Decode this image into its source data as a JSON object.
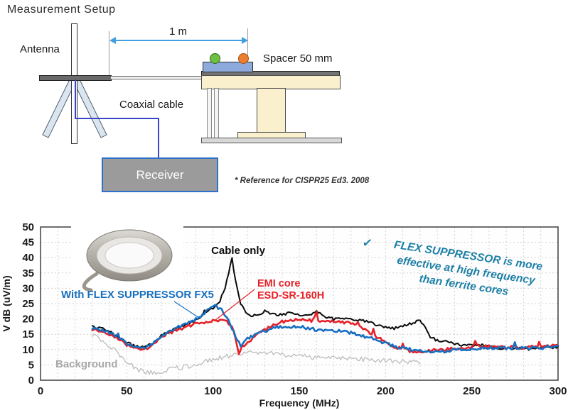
{
  "setup": {
    "title": "Measurement Setup",
    "antenna_label": "Antenna",
    "distance_label": "1 m",
    "spacer_label": "Spacer 50 mm",
    "cable_label": "Coaxial cable",
    "receiver_label": "Receiver",
    "reference_note": "* Reference for CISPR25 Ed3. 2008",
    "colors": {
      "dimension_arrow": "#41a0e0",
      "coax_cable": "#3a45c8",
      "receiver_fill": "#9b9b9b",
      "receiver_border": "#2b70c9",
      "table_top": "#faf0cd",
      "spacer_block": "#8ea9db",
      "connector_green": "#6fbf44",
      "connector_orange": "#ed7d31"
    }
  },
  "chart": {
    "labels": {
      "cable_only": "Cable only",
      "emi_core_line1": "EMI core",
      "emi_core_line2": "ESD-SR-160H",
      "flex": "With FLEX SUPPRESSOR FX5",
      "background": "Background"
    },
    "annotation": {
      "check": "✓",
      "lines": [
        "FLEX SUPPRESSOR is more",
        "effective at high frequency",
        "than ferrite cores"
      ],
      "color": "#1d7fa6"
    }
  },
  "chart_data": {
    "type": "line",
    "title": "",
    "xlabel": "Frequency (MHz)",
    "ylabel": "V dB (uV/m)",
    "xlim": [
      0,
      300
    ],
    "ylim": [
      0,
      50
    ],
    "xticks": [
      0,
      50,
      100,
      150,
      200,
      250,
      300
    ],
    "yticks": [
      0,
      5,
      10,
      15,
      20,
      25,
      30,
      35,
      40,
      45,
      50
    ],
    "grid": {
      "x_step": 10,
      "y_step": 5,
      "style": "dashed"
    },
    "legend_position": "inline-annotations",
    "z_order": [
      3,
      0,
      1,
      2
    ],
    "series": [
      {
        "name": "Cable only",
        "color": "#0b0b0b",
        "width": 2,
        "noise": 0.45,
        "x": [
          30,
          35,
          40,
          45,
          50,
          55,
          60,
          65,
          70,
          75,
          80,
          85,
          90,
          95,
          100,
          104,
          107,
          109,
          111,
          113,
          116,
          119,
          122,
          125,
          130,
          135,
          140,
          145,
          150,
          155,
          160,
          165,
          170,
          175,
          180,
          185,
          190,
          195,
          200,
          205,
          210,
          215,
          220,
          223,
          226,
          230,
          235,
          240,
          245,
          250,
          255,
          260,
          265,
          270,
          275,
          280,
          285,
          290,
          295,
          300
        ],
        "y": [
          17.5,
          17,
          16,
          14,
          12.5,
          11,
          11,
          12,
          14.5,
          16,
          17,
          18,
          19.5,
          21.5,
          23.5,
          26,
          30,
          35,
          39.5,
          33,
          25,
          22,
          21.2,
          21,
          22.5,
          21.5,
          21.5,
          22,
          21.5,
          21,
          22.5,
          20.5,
          20,
          20.5,
          20,
          19.5,
          19,
          18,
          17.5,
          17,
          17.5,
          18.5,
          19.5,
          17,
          14,
          13,
          12.5,
          12,
          11.5,
          11.5,
          11.5,
          11,
          10.5,
          10.5,
          10.5,
          10.5,
          10,
          10.5,
          10.5,
          11
        ]
      },
      {
        "name": "EMI core ESD-SR-160H",
        "color": "#e62128",
        "width": 2.6,
        "noise": 0.5,
        "x": [
          30,
          35,
          40,
          45,
          50,
          55,
          60,
          65,
          70,
          75,
          80,
          85,
          90,
          95,
          100,
          105,
          108,
          111,
          113,
          115,
          117,
          120,
          125,
          130,
          135,
          140,
          145,
          150,
          155,
          159,
          160,
          161,
          165,
          170,
          175,
          180,
          185,
          190,
          195,
          200,
          205,
          210,
          215,
          220,
          225,
          230,
          235,
          240,
          245,
          250,
          252,
          255,
          260,
          265,
          270,
          275,
          280,
          285,
          290,
          295,
          300
        ],
        "y": [
          16.5,
          16,
          15,
          13.5,
          11.5,
          10.5,
          10,
          11.5,
          14,
          15.5,
          16.5,
          17.5,
          18.5,
          19,
          19.5,
          19.5,
          19,
          17.5,
          14,
          9,
          11,
          12.5,
          14.5,
          16.5,
          18,
          19,
          19.5,
          20,
          19.5,
          19.5,
          22,
          19.5,
          19.5,
          19,
          19,
          18.5,
          17.5,
          16,
          14,
          12.5,
          11,
          10,
          9.5,
          9.5,
          9.5,
          10,
          10,
          10.5,
          10.5,
          11,
          12.5,
          11,
          11,
          11,
          10.5,
          11,
          10.5,
          11,
          11,
          11,
          11.5
        ]
      },
      {
        "name": "With FLEX SUPPRESSOR FX5",
        "color": "#176fc1",
        "width": 2.6,
        "noise": 0.5,
        "x": [
          30,
          35,
          40,
          45,
          50,
          55,
          60,
          65,
          70,
          75,
          80,
          85,
          90,
          95,
          98,
          100,
          102,
          105,
          108,
          111,
          114,
          116,
          118,
          120,
          125,
          130,
          135,
          140,
          145,
          150,
          155,
          160,
          165,
          170,
          175,
          180,
          185,
          190,
          195,
          200,
          205,
          210,
          215,
          220,
          225,
          230,
          235,
          240,
          245,
          250,
          255,
          260,
          265,
          270,
          275,
          280,
          285,
          290,
          295,
          300
        ],
        "y": [
          17,
          16.5,
          15.5,
          14,
          12,
          11,
          10.5,
          12,
          14.5,
          16,
          17.5,
          18.5,
          20,
          22,
          23.5,
          24.5,
          24,
          23,
          20.5,
          17,
          13,
          11.5,
          12.5,
          13.5,
          15,
          16,
          17,
          17.5,
          17.5,
          17.5,
          17,
          16.5,
          16.5,
          16,
          16,
          15.5,
          14.5,
          14,
          13,
          12,
          11,
          10.5,
          10,
          9.5,
          9.5,
          9.5,
          9.5,
          10,
          10,
          10,
          10.5,
          10.5,
          10.5,
          10.5,
          10.5,
          10.5,
          10.5,
          10.5,
          11,
          11
        ]
      },
      {
        "name": "Background",
        "color": "#bcbcbc",
        "width": 1.3,
        "noise": 0.8,
        "x": [
          30,
          35,
          40,
          45,
          50,
          55,
          60,
          65,
          70,
          75,
          80,
          85,
          90,
          95,
          100,
          105,
          110,
          115,
          120,
          125,
          130,
          135,
          140,
          145,
          150,
          155,
          160,
          165,
          170,
          175,
          180,
          185,
          190,
          195,
          200,
          205,
          210,
          215,
          220
        ],
        "y": [
          15,
          13,
          11.5,
          8.5,
          6,
          4,
          2.5,
          2.5,
          3,
          3.5,
          4,
          4.5,
          5,
          6,
          6.5,
          7.5,
          8,
          8.5,
          9,
          9,
          9,
          8.5,
          8.5,
          8,
          8,
          7.5,
          7.5,
          7.5,
          7,
          7.5,
          7,
          7,
          6.5,
          6.5,
          6.5,
          6,
          6,
          6,
          6
        ]
      }
    ]
  }
}
